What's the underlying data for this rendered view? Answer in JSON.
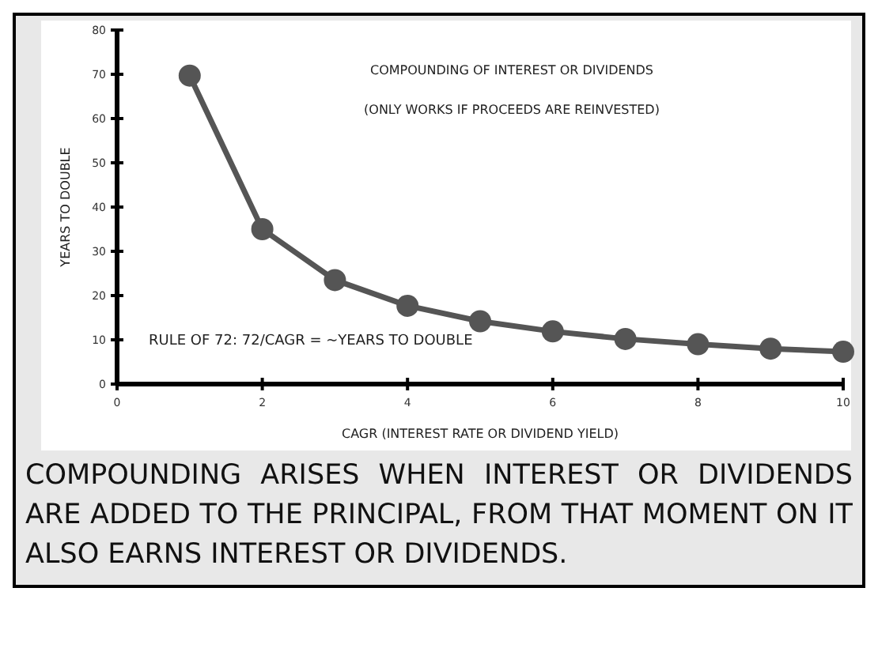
{
  "chart_data": {
    "type": "line",
    "title": "COMPOUNDING OF INTEREST OR DIVIDENDS",
    "subtitle": "(ONLY WORKS IF PROCEEDS ARE REINVESTED)",
    "xlabel": "CAGR (INTEREST RATE OR DIVIDEND YIELD)",
    "ylabel": "YEARS TO DOUBLE",
    "x": [
      1,
      2,
      3,
      4,
      5,
      6,
      7,
      8,
      9,
      10
    ],
    "series": [
      {
        "color": "#555555",
        "values": [
          69.7,
          35,
          23.5,
          17.7,
          14.2,
          11.9,
          10.2,
          9,
          8,
          7.3
        ]
      }
    ],
    "xlim": [
      0,
      10
    ],
    "xticks": [
      0,
      2,
      4,
      6,
      8,
      10
    ],
    "ylim": [
      0,
      80
    ],
    "yticks": [
      0,
      10,
      20,
      30,
      40,
      50,
      60,
      70,
      80
    ],
    "marker": "circle",
    "line_style": "solid",
    "grid": false,
    "annotations": [
      "RULE OF 72: 72/CAGR = ~YEARS TO DOUBLE",
      "COMPOUNDING ARISES WHEN INTEREST OR DIVIDENDS ARE ADDED TO THE PRINCIPAL, FROM THAT MOMENT ON IT ALSO EARNS INTEREST OR DIVIDENDS."
    ]
  }
}
